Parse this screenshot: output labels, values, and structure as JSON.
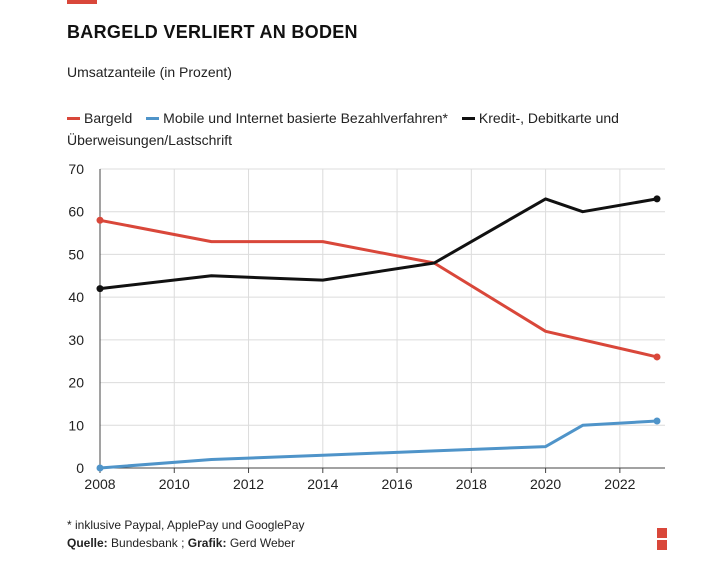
{
  "title": "BARGELD VERLIERT AN BODEN",
  "subtitle": "Umsatzanteile (in Prozent)",
  "legend": [
    {
      "label": "Bargeld",
      "color": "#d9473a"
    },
    {
      "label": "Mobile und Internet basierte Bezahlverfahren*",
      "color": "#4f94c9"
    },
    {
      "label": "Kredit-, Debitkarte und Überweisungen/Lastschrift",
      "color": "#111111"
    }
  ],
  "footnote": "* inklusive Paypal, ApplePay und GooglePay",
  "source": {
    "source_label": "Quelle:",
    "source_value": "Bundesbank",
    "separator": ";",
    "graphic_label": "Grafik:",
    "graphic_value": "Gerd Weber"
  },
  "chart_data": {
    "type": "line",
    "title": "BARGELD VERLIERT AN BODEN",
    "subtitle": "Umsatzanteile (in Prozent)",
    "xlabel": "",
    "ylabel": "",
    "xlim": [
      2008,
      2023
    ],
    "ylim": [
      0,
      70
    ],
    "xticks": [
      2008,
      2010,
      2012,
      2014,
      2016,
      2018,
      2020,
      2022
    ],
    "yticks": [
      0,
      10,
      20,
      30,
      40,
      50,
      60,
      70
    ],
    "grid": true,
    "legend_position": "top",
    "series": [
      {
        "name": "Bargeld",
        "color": "#d9473a",
        "x": [
          2008,
          2011,
          2014,
          2017,
          2020,
          2023
        ],
        "y": [
          58,
          53,
          53,
          48,
          32,
          26
        ],
        "markers_at": [
          2008,
          2023
        ]
      },
      {
        "name": "Mobile und Internet basierte Bezahlverfahren*",
        "color": "#4f94c9",
        "x": [
          2008,
          2011,
          2014,
          2017,
          2020,
          2021,
          2023
        ],
        "y": [
          0,
          2,
          3,
          4,
          5,
          10,
          11
        ],
        "markers_at": [
          2008,
          2023
        ]
      },
      {
        "name": "Kredit-, Debitkarte und Überweisungen/Lastschrift",
        "color": "#111111",
        "x": [
          2008,
          2011,
          2014,
          2017,
          2020,
          2021,
          2023
        ],
        "y": [
          42,
          45,
          44,
          48,
          63,
          60,
          63
        ],
        "markers_at": [
          2008,
          2023
        ]
      }
    ]
  }
}
